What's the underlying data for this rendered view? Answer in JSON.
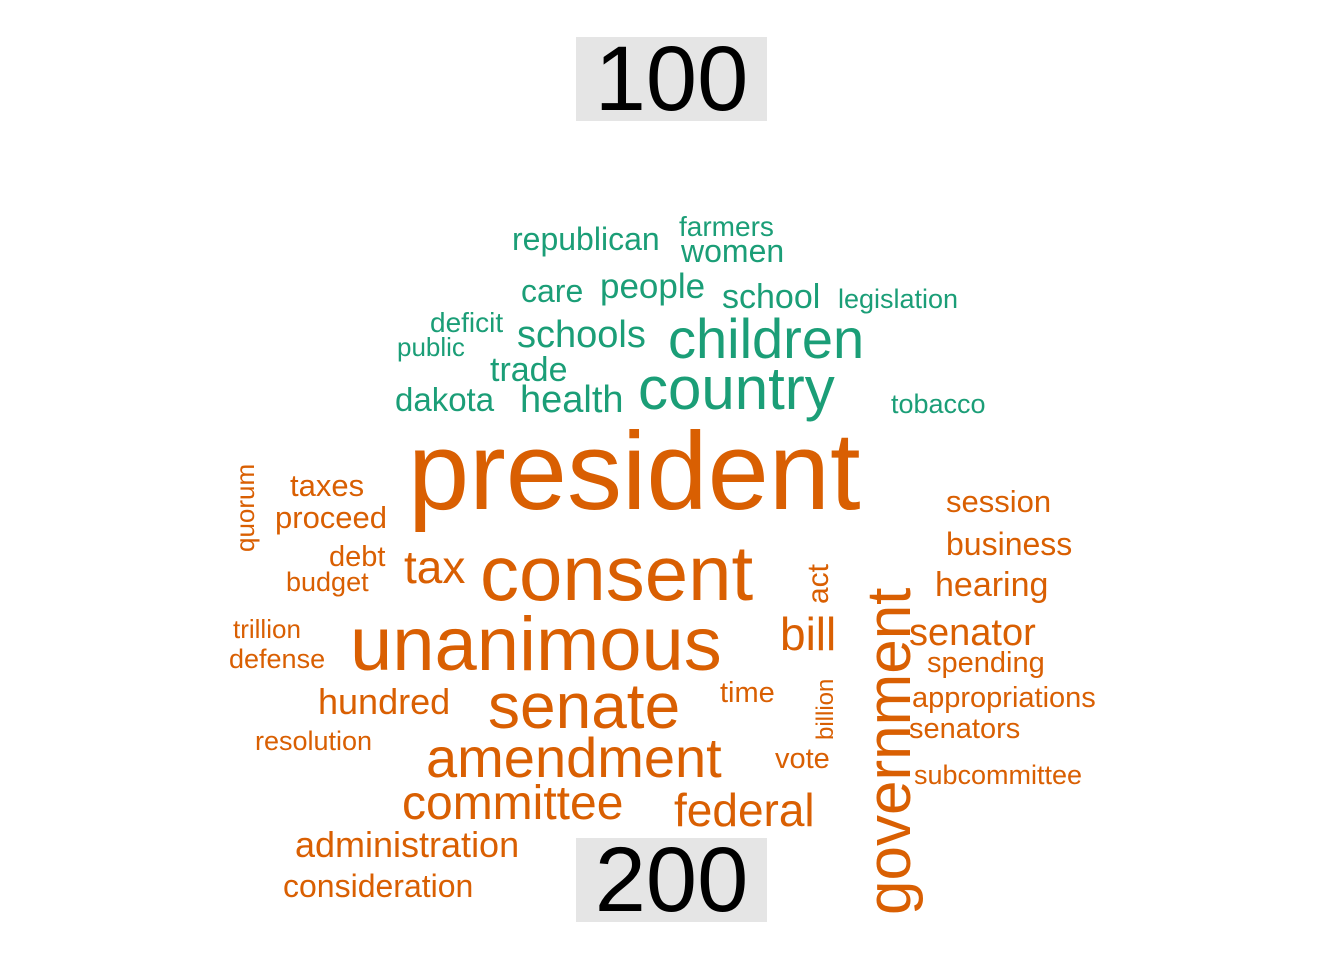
{
  "chart_data": {
    "type": "wordcloud",
    "groups": [
      {
        "label": "100",
        "color": "#1b9e77",
        "words": [
          "country",
          "children",
          "schools",
          "people",
          "school",
          "health",
          "trade",
          "care",
          "dakota",
          "republican",
          "women",
          "farmers",
          "legislation",
          "deficit",
          "tobacco",
          "public"
        ]
      },
      {
        "label": "200",
        "color": "#d95f02",
        "words": [
          "president",
          "consent",
          "unanimous",
          "senate",
          "government",
          "amendment",
          "committee",
          "tax",
          "federal",
          "bill",
          "senator",
          "business",
          "hearing",
          "administration",
          "hundred",
          "session",
          "consideration",
          "proceed",
          "taxes",
          "act",
          "spending",
          "appropriations",
          "senators",
          "subcommittee",
          "vote",
          "time",
          "debt",
          "budget",
          "defense",
          "trillion",
          "resolution",
          "billion",
          "quorum"
        ]
      }
    ]
  }
}
